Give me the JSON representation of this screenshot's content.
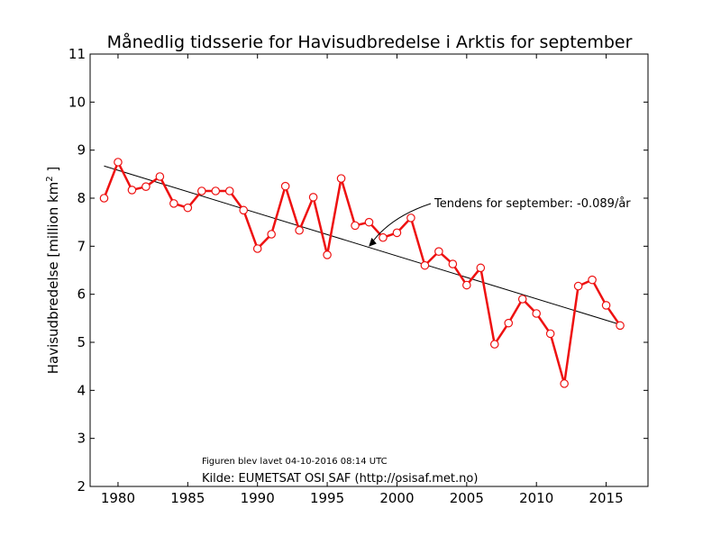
{
  "chart_data": {
    "type": "line",
    "title": "Månedlig tidsserie for Havisudbredelse i Arktis for september",
    "xlabel": "",
    "ylabel": "Havisudbredelse [million km",
    "ylabel_sup": "2",
    "ylabel_close": " ]",
    "xlim": [
      1978,
      2018
    ],
    "ylim": [
      2,
      11
    ],
    "xticks": [
      1980,
      1985,
      1990,
      1995,
      2000,
      2005,
      2010,
      2015
    ],
    "yticks": [
      2,
      3,
      4,
      5,
      6,
      7,
      8,
      9,
      10,
      11
    ],
    "grid": false,
    "series": [
      {
        "color": "#ee1111",
        "marker": "open-circle",
        "x": [
          1979,
          1980,
          1981,
          1982,
          1983,
          1984,
          1985,
          1986,
          1987,
          1988,
          1989,
          1990,
          1991,
          1992,
          1993,
          1994,
          1995,
          1996,
          1997,
          1998,
          1999,
          2000,
          2001,
          2002,
          2003,
          2004,
          2005,
          2006,
          2007,
          2008,
          2009,
          2010,
          2011,
          2012,
          2013,
          2014,
          2015,
          2016
        ],
        "y": [
          8.0,
          8.75,
          8.17,
          8.24,
          8.45,
          7.89,
          7.8,
          8.15,
          8.15,
          8.15,
          7.75,
          6.95,
          7.25,
          8.25,
          7.33,
          8.02,
          6.82,
          8.41,
          7.43,
          7.5,
          7.18,
          7.28,
          7.59,
          6.6,
          6.89,
          6.63,
          6.19,
          6.55,
          4.96,
          5.4,
          5.9,
          5.6,
          5.18,
          4.14,
          6.17,
          6.3,
          5.77,
          5.35
        ]
      }
    ],
    "trend": {
      "color": "#000000",
      "x": [
        1979,
        2016
      ],
      "y": [
        8.67,
        5.37
      ]
    },
    "annotation": {
      "text": "Tendens for september: -0.089/år",
      "point": [
        1998,
        7.0
      ]
    },
    "footnotes": {
      "created": "Figuren blev lavet 04-10-2016 08:14 UTC",
      "source": "Kilde: EUMETSAT OSI SAF (http://osisaf.met.no)"
    }
  }
}
